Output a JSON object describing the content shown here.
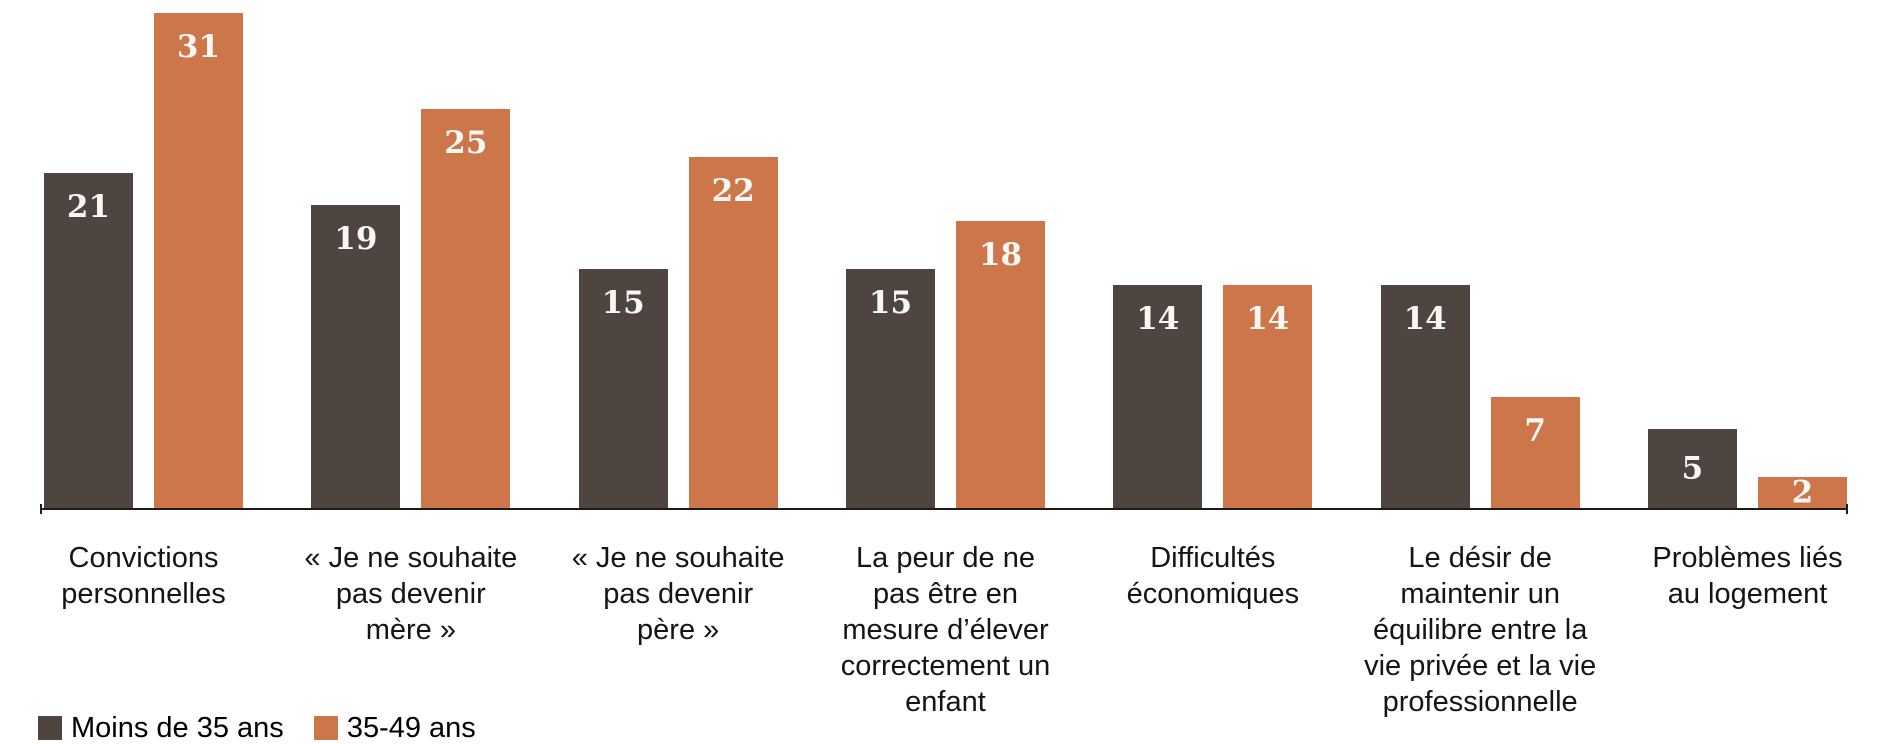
{
  "chart_data": {
    "type": "bar",
    "title": "",
    "xlabel": "",
    "ylabel": "",
    "ylim": [
      0,
      33
    ],
    "grid": false,
    "legend_position": "bottom-left",
    "value_labels": "white numbers inside top of bars",
    "categories": [
      "Convictions\npersonnelles",
      "« Je ne souhaite\npas devenir\nmère »",
      "« Je ne souhaite\npas devenir\npère »",
      "La peur de ne\npas être en\nmesure d’élever\ncorrectement un\nenfant",
      "Difficultés\néconomiques",
      "Le désir de\nmaintenir un\néquilibre entre la\nvie privée et la vie\nprofessionnelle",
      "Problèmes liés\nau logement"
    ],
    "series": [
      {
        "name": "Moins de 35 ans",
        "color": "#4E4440",
        "values": [
          21,
          19,
          15,
          15,
          14,
          14,
          5
        ]
      },
      {
        "name": "35-49 ans",
        "color": "#CC764A",
        "values": [
          31,
          25,
          22,
          18,
          14,
          7,
          2
        ]
      }
    ],
    "colors": {
      "value_label": "#F9F7F3",
      "axis": "#1F1B19",
      "category_label": "#151515",
      "background": "#FFFFFF"
    }
  }
}
